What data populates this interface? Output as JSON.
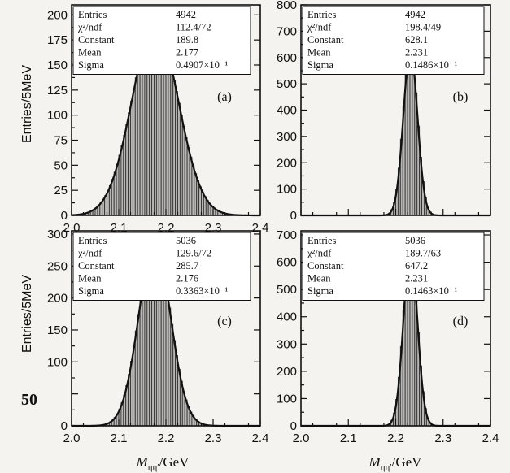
{
  "y_axis_label": "Entries/5MeV",
  "x_axis_label_left": "M_ηη′/GeV",
  "x_axis_label_right": "M_ηη′/GeV",
  "stray_number": "50",
  "colors": {
    "histogram_fill": "#b7b6b2",
    "fit_line": "#111111",
    "background": "#f4f3ef"
  },
  "chart_data": [
    {
      "type": "bar",
      "panel_label": "(a)",
      "xlim": [
        2.0,
        2.4
      ],
      "ylim": [
        0,
        210
      ],
      "xticks": [
        2.0,
        2.1,
        2.2,
        2.3,
        2.4
      ],
      "xtick_labels": [
        "2.0",
        "2.1",
        "2.2",
        "2.3",
        "2.4"
      ],
      "yticks": [
        0,
        25,
        50,
        75,
        100,
        125,
        150,
        175,
        200
      ],
      "ytick_labels": [
        "0",
        "25",
        "50",
        "75",
        "100",
        "125",
        "150",
        "175",
        "200"
      ],
      "bin_width": 0.005,
      "fit": {
        "type": "gaussian",
        "constant": 189.8,
        "mean": 2.177,
        "sigma": 0.04907
      },
      "stats": [
        {
          "label": "Entries",
          "value": "4942"
        },
        {
          "label": "χ²/ndf",
          "value": "112.4/72"
        },
        {
          "label": "Constant",
          "value": "189.8"
        },
        {
          "label": "Mean",
          "value": "2.177"
        },
        {
          "label": "Sigma",
          "value": "0.4907×10⁻¹"
        }
      ]
    },
    {
      "type": "bar",
      "panel_label": "(b)",
      "xlim": [
        2.0,
        2.4
      ],
      "ylim": [
        0,
        800
      ],
      "xticks": [
        2.0,
        2.1,
        2.2,
        2.3,
        2.4
      ],
      "xtick_labels": [
        "",
        "",
        "",
        "",
        ""
      ],
      "yticks": [
        0,
        100,
        200,
        300,
        400,
        500,
        600,
        700,
        800
      ],
      "ytick_labels": [
        "0",
        "100",
        "200",
        "300",
        "400",
        "500",
        "600",
        "700",
        "800"
      ],
      "bin_width": 0.005,
      "fit": {
        "type": "gaussian",
        "constant": 628.1,
        "mean": 2.231,
        "sigma": 0.01486
      },
      "stats": [
        {
          "label": "Entries",
          "value": "4942"
        },
        {
          "label": "χ²/ndf",
          "value": "198.4/49"
        },
        {
          "label": "Constant",
          "value": "628.1"
        },
        {
          "label": "Mean",
          "value": "2.231"
        },
        {
          "label": "Sigma",
          "value": "0.1486×10⁻¹"
        }
      ]
    },
    {
      "type": "bar",
      "panel_label": "(c)",
      "xlim": [
        2.0,
        2.4
      ],
      "ylim": [
        0,
        305
      ],
      "xticks": [
        2.0,
        2.1,
        2.2,
        2.3,
        2.4
      ],
      "xtick_labels": [
        "2.0",
        "2.1",
        "2.2",
        "2.3",
        "2.4"
      ],
      "yticks": [
        0,
        50,
        100,
        150,
        200,
        250,
        300
      ],
      "ytick_labels": [
        "0",
        "",
        "100",
        "150",
        "200",
        "250",
        "300"
      ],
      "bin_width": 0.005,
      "fit": {
        "type": "gaussian",
        "constant": 285.7,
        "mean": 2.176,
        "sigma": 0.03363
      },
      "stats": [
        {
          "label": "Entries",
          "value": "5036"
        },
        {
          "label": "χ²/ndf",
          "value": "129.6/72"
        },
        {
          "label": "Constant",
          "value": "285.7"
        },
        {
          "label": "Mean",
          "value": "2.176"
        },
        {
          "label": "Sigma",
          "value": "0.3363×10⁻¹"
        }
      ]
    },
    {
      "type": "bar",
      "panel_label": "(d)",
      "xlim": [
        2.0,
        2.4
      ],
      "ylim": [
        0,
        715
      ],
      "xticks": [
        2.0,
        2.1,
        2.2,
        2.3,
        2.4
      ],
      "xtick_labels": [
        "2.0",
        "2.1",
        "2.2",
        "2.3",
        "2.4"
      ],
      "yticks": [
        0,
        100,
        200,
        300,
        400,
        500,
        600,
        700
      ],
      "ytick_labels": [
        "0",
        "100",
        "200",
        "300",
        "400",
        "500",
        "600",
        "700"
      ],
      "bin_width": 0.005,
      "fit": {
        "type": "gaussian",
        "constant": 647.2,
        "mean": 2.231,
        "sigma": 0.01463
      },
      "stats": [
        {
          "label": "Entries",
          "value": "5036"
        },
        {
          "label": "χ²/ndf",
          "value": "189.7/63"
        },
        {
          "label": "Constant",
          "value": "647.2"
        },
        {
          "label": "Mean",
          "value": "2.231"
        },
        {
          "label": "Sigma",
          "value": "0.1463×10⁻¹"
        }
      ]
    }
  ]
}
